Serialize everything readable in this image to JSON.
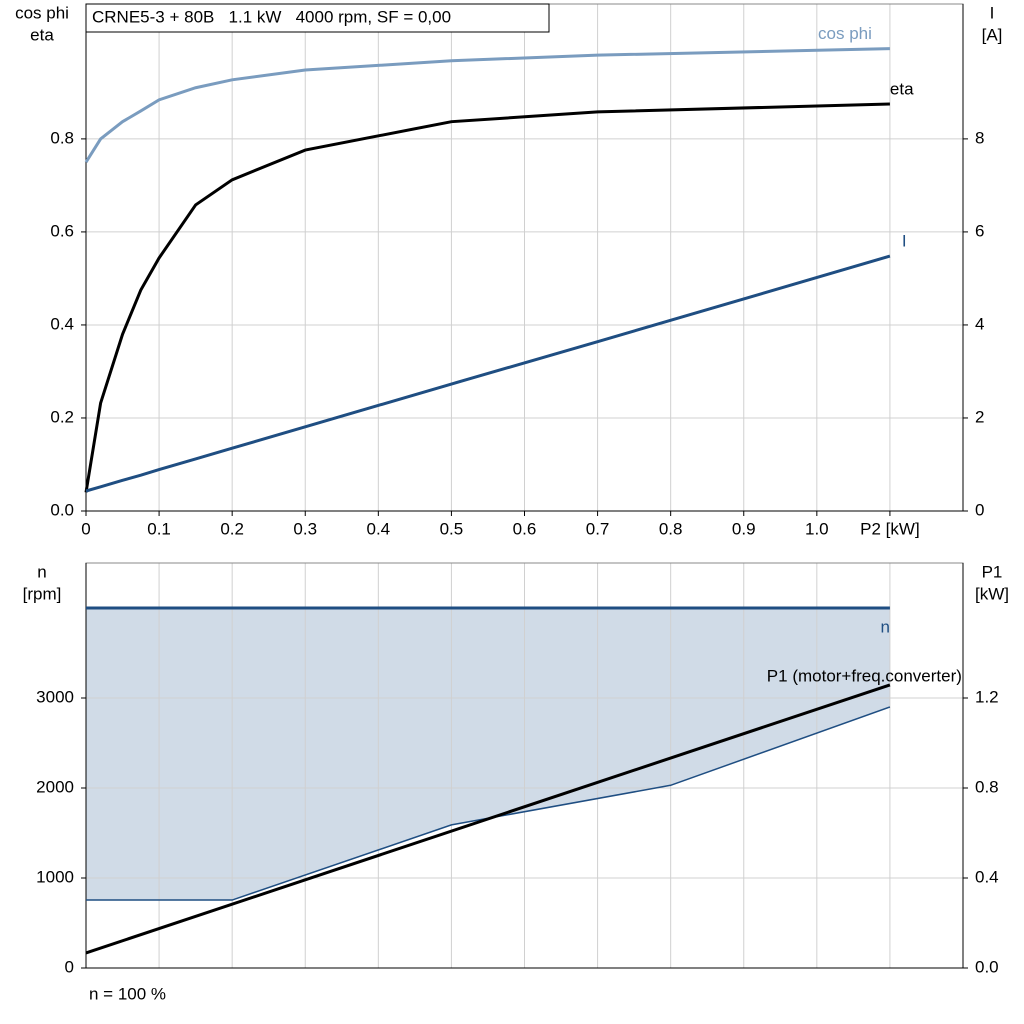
{
  "chart_data": [
    {
      "type": "line",
      "title": "CRNE5-3 + 80B   1.1 kW   4000 rpm, SF = 0,00",
      "y_label": [
        "cos phi",
        "eta"
      ],
      "y2_label": [
        "I",
        "[A]"
      ],
      "xlim": [
        0,
        1.2
      ],
      "xticks": [
        0,
        0.1,
        0.2,
        0.3,
        0.4,
        0.5,
        0.6,
        0.7,
        0.8,
        0.9,
        {
          "value": 1,
          "label": "1.0"
        },
        {
          "value": 1.1,
          "label": "P2 [kW]"
        }
      ],
      "ylim": [
        0,
        1.09
      ],
      "yticks": [
        {
          "value": 0,
          "label": "0.0"
        },
        0.2,
        0.4,
        0.6,
        0.8
      ],
      "y2lim": [
        0,
        10.9
      ],
      "y2ticks": [
        0,
        2,
        4,
        6,
        8
      ],
      "grid": true,
      "x": [
        0,
        0.02,
        0.05,
        0.075,
        0.1,
        0.15,
        0.2,
        0.3,
        0.5,
        0.7,
        1.1
      ],
      "series": [
        {
          "name": "cos phi",
          "color": "#7a9cbf",
          "values": [
            0.75,
            0.8,
            0.837,
            0.86,
            0.884,
            0.91,
            0.927,
            0.948,
            0.968,
            0.98,
            0.994
          ]
        },
        {
          "name": "eta",
          "color": "#000000",
          "values": [
            0.04,
            0.232,
            0.38,
            0.475,
            0.544,
            0.658,
            0.712,
            0.776,
            0.837,
            0.858,
            0.875
          ]
        },
        {
          "name": "I",
          "color": "#1f4e82",
          "axis": "y2",
          "values": [
            0.43,
            0.52,
            0.66,
            0.77,
            0.89,
            1.12,
            1.35,
            1.81,
            2.73,
            3.64,
            5.48
          ]
        }
      ]
    },
    {
      "type": "line",
      "y_label": [
        "n",
        "[rpm]"
      ],
      "y2_label": [
        "P1",
        "[kW]"
      ],
      "note": "n = 100 %",
      "xlim": [
        0,
        1.2
      ],
      "ylim": [
        0,
        4500
      ],
      "yticks": [
        0,
        1000,
        2000,
        3000
      ],
      "y2lim": [
        0,
        1.8
      ],
      "y2ticks": [
        {
          "value": 0,
          "label": "0.0"
        },
        0.4,
        0.8,
        1.2
      ],
      "grid": true,
      "fill_between": [
        0,
        1
      ],
      "fill_color": "#d0dbe7",
      "series": [
        {
          "name": "n",
          "color": "#1f4e82",
          "x": [
            0,
            1.1
          ],
          "values": [
            4000,
            4000
          ]
        },
        {
          "color": "#1f4e82",
          "x": [
            0,
            0.2,
            0.5,
            0.8,
            1.1
          ],
          "values": [
            755,
            755,
            1590,
            2030,
            2900
          ]
        },
        {
          "name": "P1 (motor+freq.converter)",
          "color": "#000000",
          "axis": "y2",
          "x": [
            0,
            1.1
          ],
          "values": [
            0.067,
            1.258
          ]
        }
      ]
    }
  ]
}
